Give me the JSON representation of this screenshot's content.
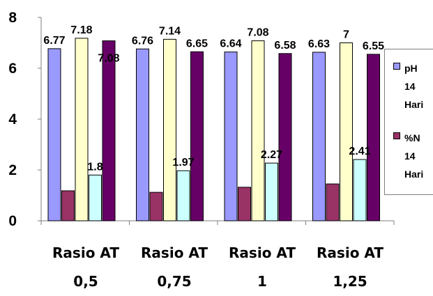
{
  "chart_data": {
    "type": "bar",
    "categories": [
      "Rasio AT 0,5",
      "Rasio AT 0,75",
      "Rasio AT 1",
      "Rasio AT 1,25"
    ],
    "category_lines": [
      [
        "Rasio AT",
        "0,5"
      ],
      [
        "Rasio AT",
        "0,75"
      ],
      [
        "Rasio AT",
        "1"
      ],
      [
        "Rasio AT",
        "1,25"
      ]
    ],
    "ylim": [
      0,
      8
    ],
    "yticks": [
      0,
      2,
      4,
      6,
      8
    ],
    "grid": false,
    "legend_placement": "right",
    "series": [
      {
        "color": "#9999ff",
        "values": [
          6.77,
          6.76,
          6.64,
          6.63
        ],
        "labels": [
          "6.77",
          "6.76",
          "6.64",
          "6.63"
        ]
      },
      {
        "color": "#993366",
        "values": [
          1.18,
          1.12,
          1.32,
          1.45
        ],
        "labels": []
      },
      {
        "color": "#ffffcc",
        "values": [
          7.18,
          7.14,
          7.08,
          7.0
        ],
        "labels": [
          "7.18",
          "7.14",
          "7.08",
          "7"
        ]
      },
      {
        "color": "#ccffff",
        "values": [
          1.8,
          1.97,
          2.27,
          2.41
        ],
        "labels": [
          "1.8",
          "1.97",
          "2.27",
          "2.41"
        ]
      },
      {
        "color": "#660066",
        "values": [
          7.08,
          6.65,
          6.58,
          6.55
        ],
        "labels": [
          "7.08",
          "6.65",
          "6.58",
          "6.55"
        ]
      }
    ],
    "legend": [
      {
        "lines": [
          "pH",
          "14",
          "Hari"
        ],
        "color": "#9999ff"
      },
      {
        "lines": [
          "%N",
          "14",
          "Hari"
        ],
        "color": "#993366"
      }
    ]
  }
}
